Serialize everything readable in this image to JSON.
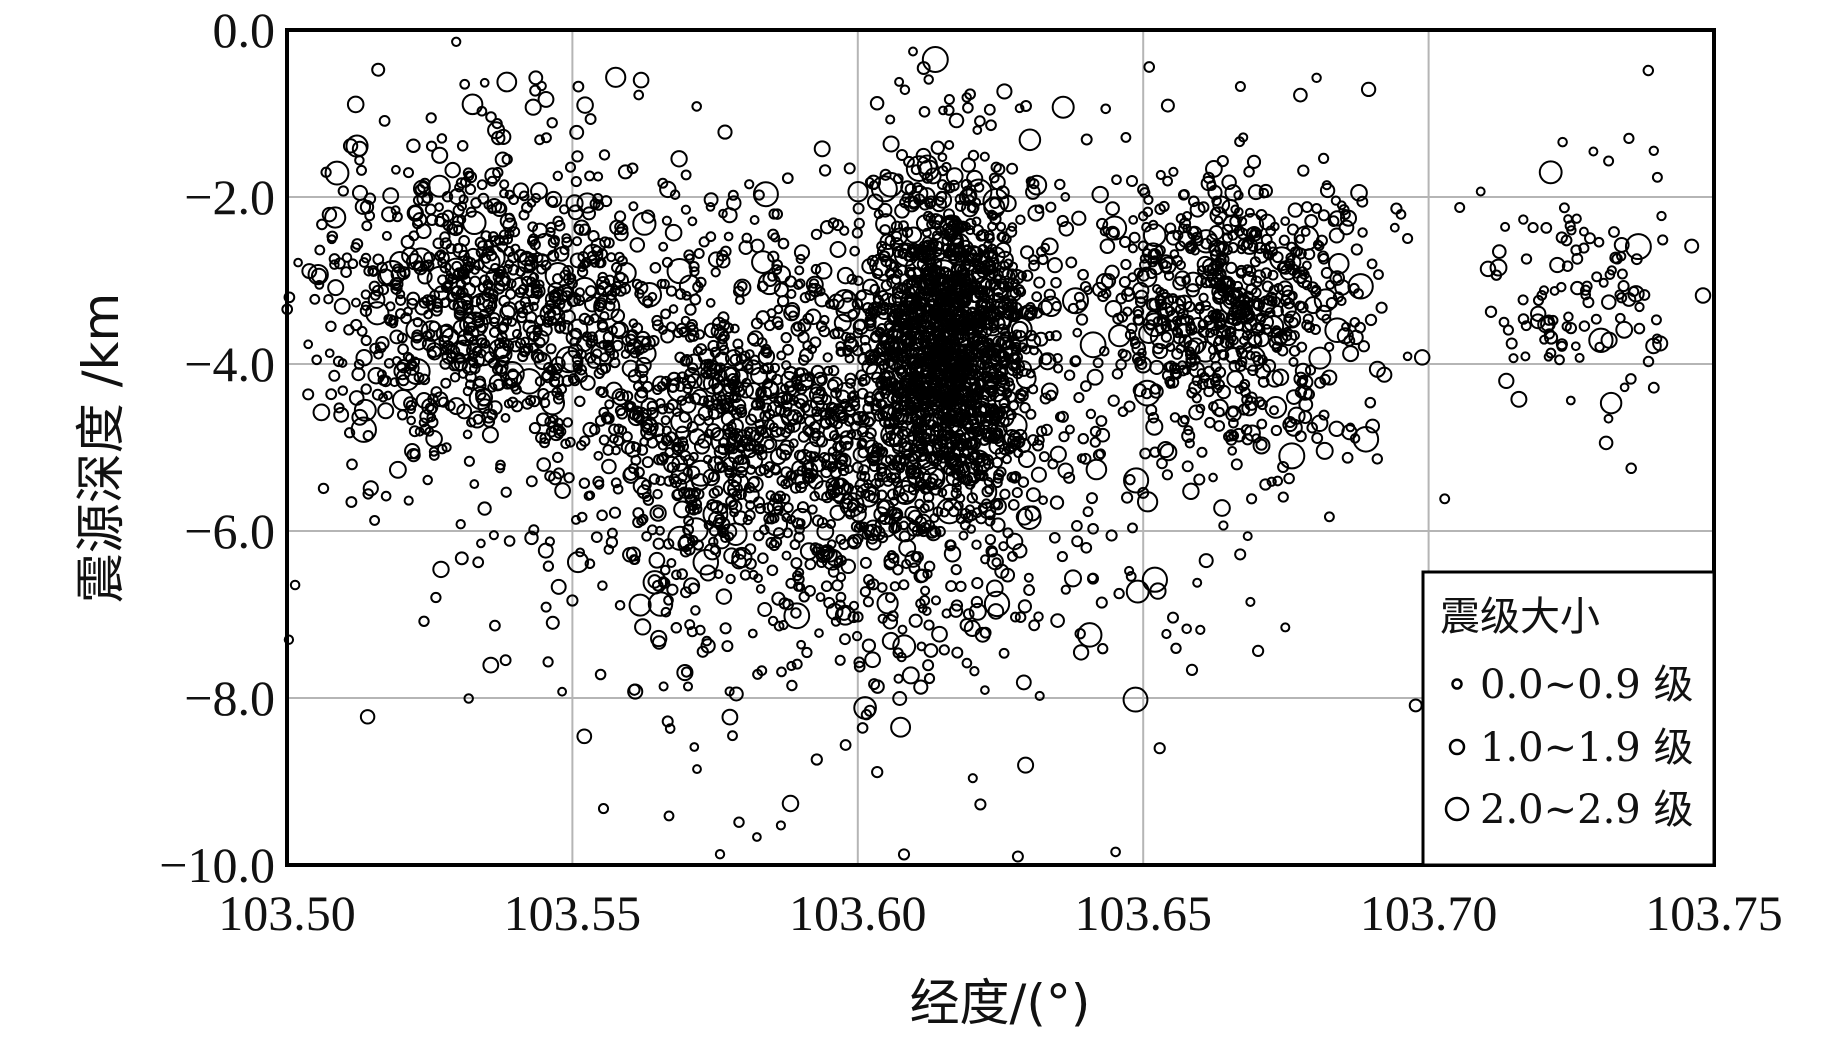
{
  "chart_data": {
    "type": "scatter",
    "xlabel": "经度/(°)",
    "ylabel": "震源深度 /km",
    "xlim": [
      103.5,
      103.75
    ],
    "ylim": [
      -10.0,
      0.0
    ],
    "xticks": [
      "103.50",
      "103.55",
      "103.60",
      "103.65",
      "103.70",
      "103.75"
    ],
    "yticks": [
      "0.0",
      "−2.0",
      "−4.0",
      "−6.0",
      "−8.0",
      "−10.0"
    ],
    "grid": true,
    "legend_position": "bottom-right",
    "legend": {
      "title": "震级大小",
      "entries": [
        "0.0~0.9 级",
        "1.0~1.9 级",
        "2.0~2.9 级"
      ]
    },
    "marker_style": "open circle, size proportional to magnitude",
    "density_note": "many thousands of events; estimated distribution",
    "clusters": [
      {
        "x_center": 103.616,
        "x_spread": 0.012,
        "y_center": -3.8,
        "y_spread": 2.0,
        "count": 1400
      },
      {
        "x_center": 103.585,
        "x_spread": 0.03,
        "y_center": -4.8,
        "y_spread": 2.0,
        "count": 900
      },
      {
        "x_center": 103.535,
        "x_spread": 0.025,
        "y_center": -3.2,
        "y_spread": 1.8,
        "count": 800
      },
      {
        "x_center": 103.665,
        "x_spread": 0.02,
        "y_center": -3.3,
        "y_spread": 1.6,
        "count": 650
      },
      {
        "x_center": 103.725,
        "x_spread": 0.015,
        "y_center": -3.2,
        "y_spread": 1.4,
        "count": 120
      },
      {
        "x_center": 103.6,
        "x_spread": 0.06,
        "y_center": -5.0,
        "y_spread": 3.5,
        "count": 700
      }
    ]
  }
}
